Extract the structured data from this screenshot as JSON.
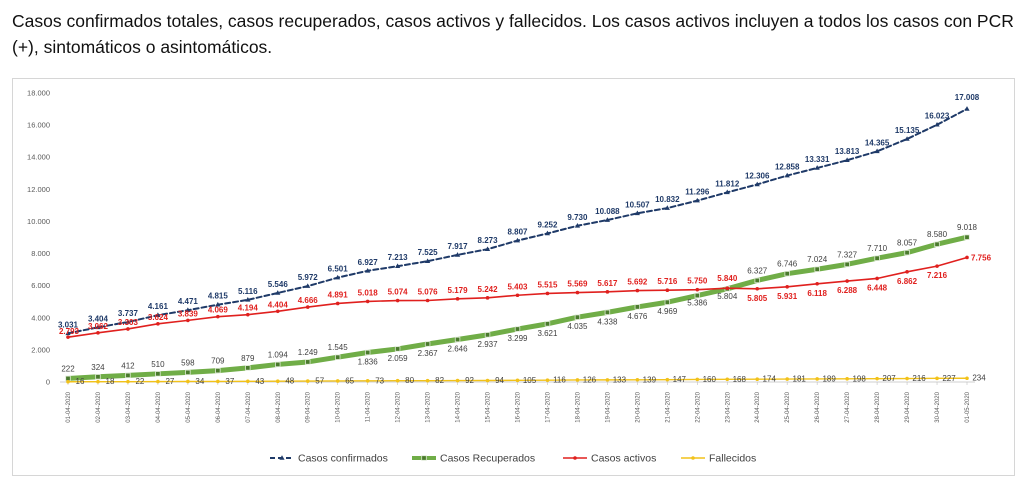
{
  "caption": "Casos confirmados totales, casos recuperados, casos activos y fallecidos. Los casos activos incluyen a todos los casos con PCR (+), sintomáticos o asintomáticos.",
  "chart_data": {
    "type": "line",
    "x": [
      "01-04-2020",
      "02-04-2020",
      "03-04-2020",
      "04-04-2020",
      "05-04-2020",
      "06-04-2020",
      "07-04-2020",
      "08-04-2020",
      "09-04-2020",
      "10-04-2020",
      "11-04-2020",
      "12-04-2020",
      "13-04-2020",
      "14-04-2020",
      "15-04-2020",
      "16-04-2020",
      "17-04-2020",
      "18-04-2020",
      "19-04-2020",
      "20-04-2020",
      "21-04-2020",
      "22-04-2020",
      "23-04-2020",
      "24-04-2020",
      "25-04-2020",
      "26-04-2020",
      "27-04-2020",
      "28-04-2020",
      "29-04-2020",
      "30-04-2020",
      "01-05-2020"
    ],
    "ylim": [
      0,
      18000
    ],
    "yticks": [
      0,
      2000,
      4000,
      6000,
      8000,
      10000,
      12000,
      14000,
      16000,
      18000
    ],
    "ytick_labels": [
      "0",
      "2.000",
      "4.000",
      "6.000",
      "8.000",
      "10.000",
      "12.000",
      "14.000",
      "16.000",
      "18.000"
    ],
    "grid": false,
    "legend": "bottom",
    "series": [
      {
        "name": "Casos confirmados",
        "color": "#1f3a68",
        "values": [
          3031,
          3404,
          3737,
          4161,
          4471,
          4815,
          5116,
          5546,
          5972,
          6501,
          6927,
          7213,
          7525,
          7917,
          8273,
          8807,
          9252,
          9730,
          10088,
          10507,
          10832,
          11296,
          11812,
          12306,
          12858,
          13331,
          13813,
          14365,
          15135,
          16023,
          17008
        ],
        "labels": [
          "3.031",
          "3.404",
          "3.737",
          "4.161",
          "4.471",
          "4.815",
          "5.116",
          "5.546",
          "5.972",
          "6.501",
          "6.927",
          "7.213",
          "7.525",
          "7.917",
          "8.273",
          "8.807",
          "9.252",
          "9.730",
          "10.088",
          "10.507",
          "10.832",
          "11.296",
          "11.812",
          "12.306",
          "12.858",
          "13.331",
          "13.813",
          "14.365",
          "15.135",
          "16.023",
          "17.008"
        ]
      },
      {
        "name": "Casos Recuperados",
        "color": "#70ad47",
        "values": [
          222,
          324,
          412,
          510,
          598,
          709,
          879,
          1094,
          1249,
          1545,
          1836,
          2059,
          2367,
          2646,
          2937,
          3299,
          3621,
          4035,
          4338,
          4676,
          4969,
          5386,
          5804,
          6327,
          6746,
          7024,
          7327,
          7710,
          8057,
          8580,
          9018
        ],
        "labels": [
          "222",
          "324",
          "412",
          "510",
          "598",
          "709",
          "879",
          "1.094",
          "1.249",
          "1.545",
          "1.836",
          "2.059",
          "2.367",
          "2.646",
          "2.937",
          "3.299",
          "3.621",
          "4.035",
          "4.338",
          "4.676",
          "4.969",
          "5.386",
          "5.804",
          "6.327",
          "6.746",
          "7.024",
          "7.327",
          "7.710",
          "8.057",
          "8.580",
          "9.018"
        ]
      },
      {
        "name": "Casos activos",
        "color": "#e0201e",
        "values": [
          2793,
          3062,
          3303,
          3624,
          3839,
          4069,
          4194,
          4404,
          4666,
          4891,
          5018,
          5074,
          5076,
          5179,
          5242,
          5403,
          5515,
          5569,
          5617,
          5692,
          5716,
          5750,
          5840,
          5805,
          5931,
          6118,
          6288,
          6448,
          6862,
          7216,
          7756
        ],
        "labels": [
          "2.793",
          "3.062",
          "3.303",
          "3.624",
          "3.839",
          "4.069",
          "4.194",
          "4.404",
          "4.666",
          "4.891",
          "5.018",
          "5.074",
          "5.076",
          "5.179",
          "5.242",
          "5.403",
          "5.515",
          "5.569",
          "5.617",
          "5.692",
          "5.716",
          "5.750",
          "5.840",
          "5.805",
          "5.931",
          "6.118",
          "6.288",
          "6.448",
          "6.862",
          "7.216",
          "7.756"
        ]
      },
      {
        "name": "Fallecidos",
        "color": "#f2c21a",
        "values": [
          16,
          18,
          22,
          27,
          34,
          37,
          43,
          48,
          57,
          65,
          73,
          80,
          82,
          92,
          94,
          105,
          116,
          126,
          133,
          139,
          147,
          160,
          168,
          174,
          181,
          189,
          198,
          207,
          216,
          227,
          234
        ],
        "labels": [
          "16",
          "18",
          "22",
          "27",
          "34",
          "37",
          "43",
          "48",
          "57",
          "65",
          "73",
          "80",
          "82",
          "92",
          "94",
          "105",
          "116",
          "126",
          "133",
          "139",
          "147",
          "160",
          "168",
          "174",
          "181",
          "189",
          "198",
          "207",
          "216",
          "227",
          "234"
        ]
      }
    ]
  }
}
